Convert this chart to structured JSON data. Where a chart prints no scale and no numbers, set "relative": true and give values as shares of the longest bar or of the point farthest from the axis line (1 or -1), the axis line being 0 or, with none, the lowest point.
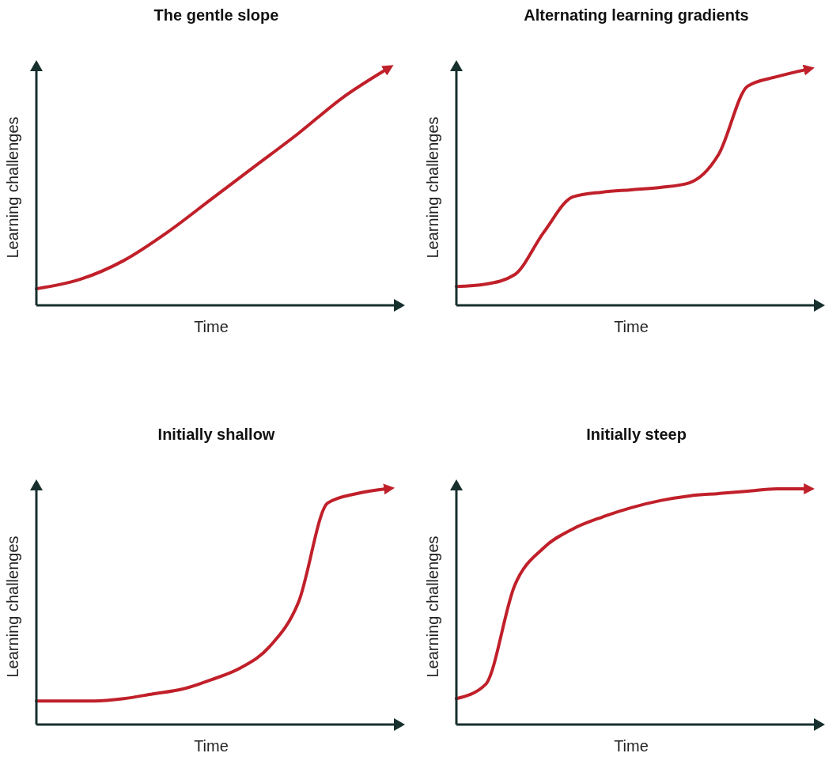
{
  "chart_data": [
    {
      "type": "line",
      "title": "The gentle slope",
      "xlabel": "Time",
      "ylabel": "Learning challenges",
      "relative": true,
      "categories": [
        null,
        null,
        null,
        null,
        null,
        null,
        null,
        null,
        null
      ],
      "series": [
        {
          "color": "#c0202a",
          "values": [
            0.07,
            0.11,
            0.19,
            0.31,
            0.45,
            0.59,
            0.73,
            0.88,
            1.0
          ]
        }
      ]
    },
    {
      "type": "line",
      "title": "Alternating learning gradients",
      "xlabel": "Time",
      "ylabel": "Learning challenges",
      "relative": true,
      "categories": [
        null,
        null,
        null,
        null,
        null,
        null,
        null,
        null,
        null,
        null,
        null,
        null,
        null
      ],
      "series": [
        {
          "color": "#c0202a",
          "values": [
            0.08,
            0.09,
            0.13,
            0.31,
            0.46,
            0.48,
            0.49,
            0.5,
            0.52,
            0.64,
            0.93,
            0.97,
            1.0
          ]
        }
      ]
    },
    {
      "type": "line",
      "title": "Initially shallow",
      "xlabel": "Time",
      "ylabel": "Learning challenges",
      "relative": true,
      "categories": [
        null,
        null,
        null,
        null,
        null,
        null,
        null,
        null,
        null,
        null,
        null,
        null,
        null
      ],
      "series": [
        {
          "color": "#c0202a",
          "values": [
            0.1,
            0.1,
            0.1,
            0.11,
            0.13,
            0.15,
            0.19,
            0.24,
            0.33,
            0.52,
            0.94,
            0.98,
            1.0
          ]
        }
      ]
    },
    {
      "type": "line",
      "title": "Initially steep",
      "xlabel": "Time",
      "ylabel": "Learning challenges",
      "relative": true,
      "categories": [
        null,
        null,
        null,
        null,
        null,
        null,
        null,
        null,
        null,
        null,
        null,
        null,
        null
      ],
      "series": [
        {
          "color": "#c0202a",
          "values": [
            0.11,
            0.17,
            0.59,
            0.75,
            0.83,
            0.88,
            0.92,
            0.95,
            0.97,
            0.98,
            0.99,
            1.0,
            1.0
          ]
        }
      ]
    }
  ]
}
